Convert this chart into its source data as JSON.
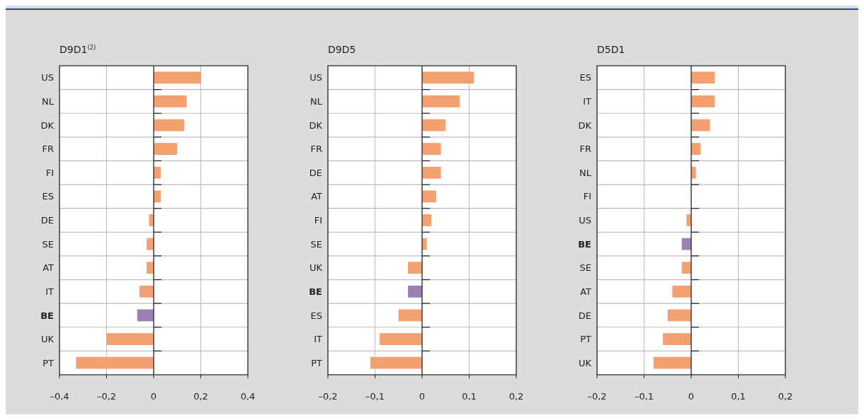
{
  "chart_data": [
    {
      "type": "bar",
      "orientation": "horizontal",
      "title": "D9D1$^{(2)}$",
      "categories": [
        "US",
        "NL",
        "DK",
        "FR",
        "FI",
        "ES",
        "DE",
        "SE",
        "AT",
        "IT",
        "BE",
        "UK",
        "PT"
      ],
      "values": [
        0.2,
        0.14,
        0.13,
        0.1,
        0.03,
        0.03,
        -0.02,
        -0.03,
        -0.03,
        -0.06,
        -0.07,
        -0.2,
        -0.33
      ],
      "colors": [
        "#f4a070",
        "#f4a070",
        "#f4a070",
        "#f4a070",
        "#f4a070",
        "#f4a070",
        "#f4a070",
        "#f4a070",
        "#f4a070",
        "#f4a070",
        "#9b80b3",
        "#f4a070",
        "#f4a070"
      ],
      "xlim": [
        -0.4,
        0.4
      ],
      "xticks": [
        {
          "value": -0.4,
          "label": "–0,4"
        },
        {
          "value": -0.2,
          "label": "–0,2"
        },
        {
          "value": 0,
          "label": "0"
        },
        {
          "value": 0.2,
          "label": "0,2"
        },
        {
          "value": 0.4,
          "label": "0,4"
        }
      ],
      "grid": true
    },
    {
      "type": "bar",
      "orientation": "horizontal",
      "title": "D9D5",
      "categories": [
        "US",
        "NL",
        "DK",
        "FR",
        "DE",
        "AT",
        "FI",
        "SE",
        "UK",
        "BE",
        "ES",
        "IT",
        "PT"
      ],
      "values": [
        0.11,
        0.08,
        0.05,
        0.04,
        0.04,
        0.03,
        0.02,
        0.01,
        -0.03,
        -0.03,
        -0.05,
        -0.09,
        -0.11
      ],
      "colors": [
        "#f4a070",
        "#f4a070",
        "#f4a070",
        "#f4a070",
        "#f4a070",
        "#f4a070",
        "#f4a070",
        "#f4a070",
        "#f4a070",
        "#9b80b3",
        "#f4a070",
        "#f4a070",
        "#f4a070"
      ],
      "xlim": [
        -0.2,
        0.2
      ],
      "xticks": [
        {
          "value": -0.2,
          "label": "–0,2"
        },
        {
          "value": -0.1,
          "label": "–0,1"
        },
        {
          "value": 0,
          "label": "0"
        },
        {
          "value": 0.1,
          "label": "0,1"
        },
        {
          "value": 0.2,
          "label": "0,2"
        }
      ],
      "grid": true
    },
    {
      "type": "bar",
      "orientation": "horizontal",
      "title": "D5D1",
      "categories": [
        "ES",
        "IT",
        "DK",
        "FR",
        "NL",
        "FI",
        "US",
        "BE",
        "SE",
        "AT",
        "DE",
        "PT",
        "UK"
      ],
      "values": [
        0.05,
        0.05,
        0.04,
        0.02,
        0.01,
        0,
        -0.01,
        -0.02,
        -0.02,
        -0.04,
        -0.05,
        -0.06,
        -0.08
      ],
      "colors": [
        "#f4a070",
        "#f4a070",
        "#f4a070",
        "#f4a070",
        "#f4a070",
        "#f4a070",
        "#f4a070",
        "#9b80b3",
        "#f4a070",
        "#f4a070",
        "#f4a070",
        "#f4a070",
        "#f4a070"
      ],
      "xlim": [
        -0.2,
        0.2
      ],
      "xticks": [
        {
          "value": -0.2,
          "label": "–0,2"
        },
        {
          "value": -0.1,
          "label": "–0,1"
        },
        {
          "value": 0,
          "label": "0"
        },
        {
          "value": 0.1,
          "label": "0,1"
        },
        {
          "value": 0.2,
          "label": "0,2"
        }
      ],
      "grid": true
    }
  ]
}
